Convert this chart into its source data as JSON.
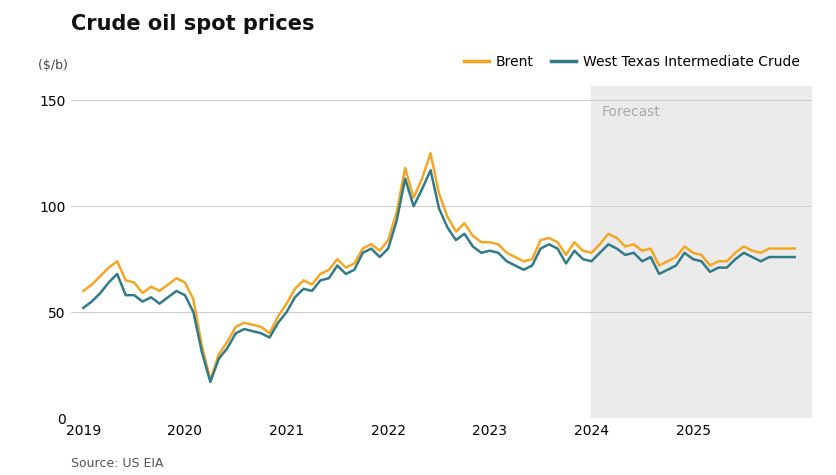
{
  "title": "Crude oil spot prices",
  "source": "Source: US EIA",
  "legend_brent": "Brent",
  "legend_wti": "West Texas Intermediate Crude",
  "forecast_label": "Forecast",
  "forecast_start": 2024.0,
  "xmax": 2026.17,
  "brent_color": "#F5A623",
  "wti_color": "#317B89",
  "background_color": "#FFFFFF",
  "forecast_bg_color": "#EBEBEB",
  "ylim": [
    0,
    157
  ],
  "yticks": [
    0,
    50,
    100,
    150
  ],
  "xticks": [
    2019,
    2020,
    2021,
    2022,
    2023,
    2024,
    2025
  ],
  "xlim_left": 2018.88,
  "brent_dates": [
    2019.0,
    2019.083,
    2019.167,
    2019.25,
    2019.333,
    2019.417,
    2019.5,
    2019.583,
    2019.667,
    2019.75,
    2019.833,
    2019.917,
    2020.0,
    2020.083,
    2020.167,
    2020.25,
    2020.333,
    2020.417,
    2020.5,
    2020.583,
    2020.667,
    2020.75,
    2020.833,
    2020.917,
    2021.0,
    2021.083,
    2021.167,
    2021.25,
    2021.333,
    2021.417,
    2021.5,
    2021.583,
    2021.667,
    2021.75,
    2021.833,
    2021.917,
    2022.0,
    2022.083,
    2022.167,
    2022.25,
    2022.333,
    2022.417,
    2022.5,
    2022.583,
    2022.667,
    2022.75,
    2022.833,
    2022.917,
    2023.0,
    2023.083,
    2023.167,
    2023.25,
    2023.333,
    2023.417,
    2023.5,
    2023.583,
    2023.667,
    2023.75,
    2023.833,
    2023.917,
    2024.0,
    2024.083,
    2024.167,
    2024.25,
    2024.333,
    2024.417,
    2024.5,
    2024.583,
    2024.667,
    2024.75,
    2024.833,
    2024.917,
    2025.0,
    2025.083,
    2025.167,
    2025.25,
    2025.333,
    2025.417,
    2025.5,
    2025.583,
    2025.667,
    2025.75,
    2025.833,
    2025.917,
    2026.0
  ],
  "brent_values": [
    60,
    63,
    67,
    71,
    74,
    65,
    64,
    59,
    62,
    60,
    63,
    66,
    64,
    56,
    34,
    18,
    30,
    36,
    43,
    45,
    44,
    43,
    40,
    48,
    54,
    61,
    65,
    63,
    68,
    70,
    75,
    71,
    73,
    80,
    82,
    79,
    84,
    97,
    118,
    104,
    113,
    125,
    106,
    95,
    88,
    92,
    86,
    83,
    83,
    82,
    78,
    76,
    74,
    75,
    84,
    85,
    83,
    77,
    83,
    79,
    78,
    82,
    87,
    85,
    81,
    82,
    79,
    80,
    72,
    74,
    76,
    81,
    78,
    77,
    72,
    74,
    74,
    78,
    81,
    79,
    78,
    80,
    80,
    80,
    80
  ],
  "wti_dates": [
    2019.0,
    2019.083,
    2019.167,
    2019.25,
    2019.333,
    2019.417,
    2019.5,
    2019.583,
    2019.667,
    2019.75,
    2019.833,
    2019.917,
    2020.0,
    2020.083,
    2020.167,
    2020.25,
    2020.333,
    2020.417,
    2020.5,
    2020.583,
    2020.667,
    2020.75,
    2020.833,
    2020.917,
    2021.0,
    2021.083,
    2021.167,
    2021.25,
    2021.333,
    2021.417,
    2021.5,
    2021.583,
    2021.667,
    2021.75,
    2021.833,
    2021.917,
    2022.0,
    2022.083,
    2022.167,
    2022.25,
    2022.333,
    2022.417,
    2022.5,
    2022.583,
    2022.667,
    2022.75,
    2022.833,
    2022.917,
    2023.0,
    2023.083,
    2023.167,
    2023.25,
    2023.333,
    2023.417,
    2023.5,
    2023.583,
    2023.667,
    2023.75,
    2023.833,
    2023.917,
    2024.0,
    2024.083,
    2024.167,
    2024.25,
    2024.333,
    2024.417,
    2024.5,
    2024.583,
    2024.667,
    2024.75,
    2024.833,
    2024.917,
    2025.0,
    2025.083,
    2025.167,
    2025.25,
    2025.333,
    2025.417,
    2025.5,
    2025.583,
    2025.667,
    2025.75,
    2025.833,
    2025.917,
    2026.0
  ],
  "wti_values": [
    52,
    55,
    59,
    64,
    68,
    58,
    58,
    55,
    57,
    54,
    57,
    60,
    58,
    50,
    31,
    17,
    28,
    33,
    40,
    42,
    41,
    40,
    38,
    45,
    50,
    57,
    61,
    60,
    65,
    66,
    72,
    68,
    70,
    78,
    80,
    76,
    80,
    93,
    113,
    100,
    108,
    117,
    99,
    90,
    84,
    87,
    81,
    78,
    79,
    78,
    74,
    72,
    70,
    72,
    80,
    82,
    80,
    73,
    79,
    75,
    74,
    78,
    82,
    80,
    77,
    78,
    74,
    76,
    68,
    70,
    72,
    78,
    75,
    74,
    69,
    71,
    71,
    75,
    78,
    76,
    74,
    76,
    76,
    76,
    76
  ]
}
